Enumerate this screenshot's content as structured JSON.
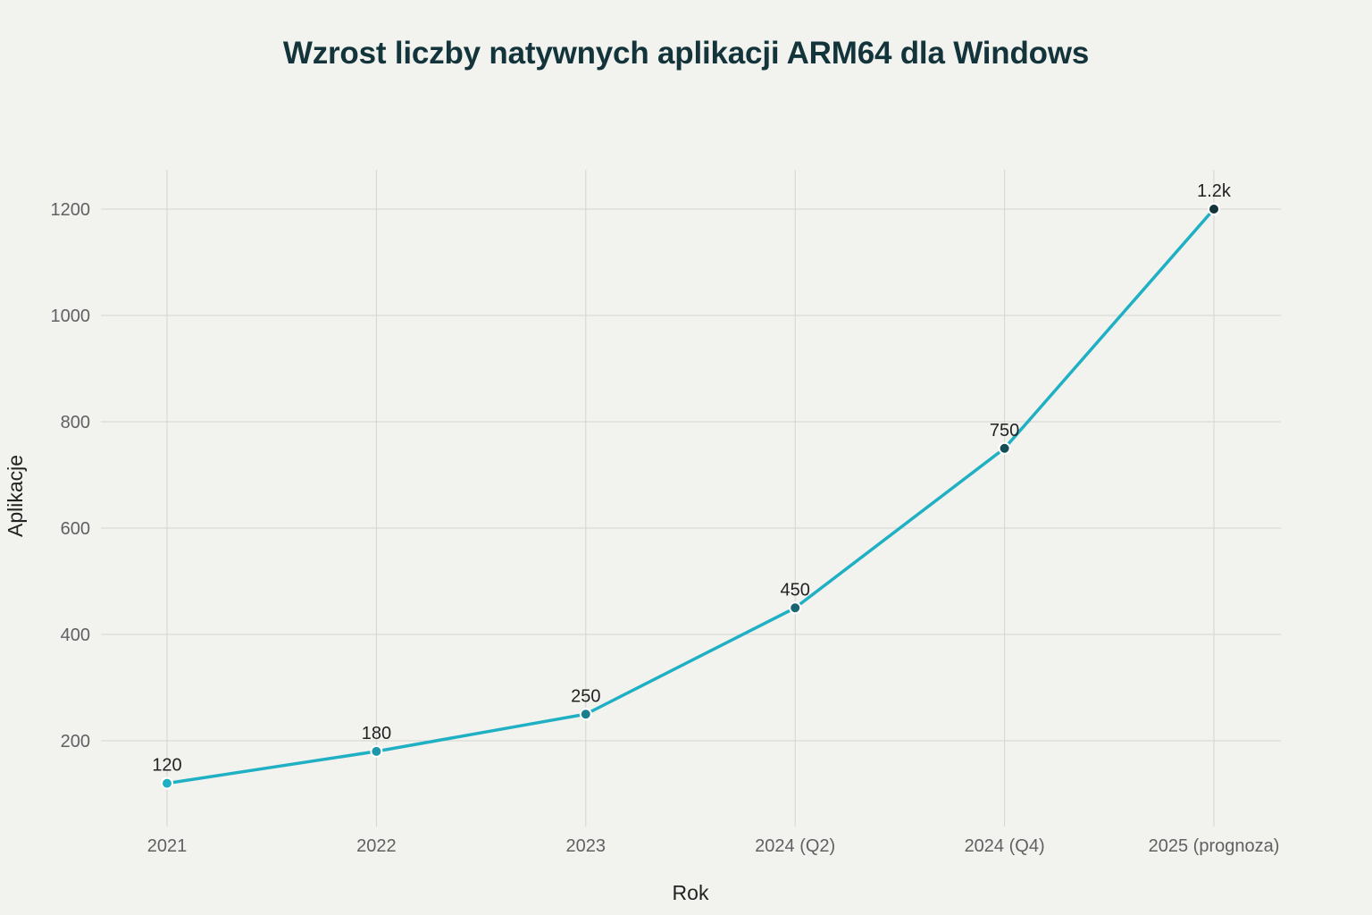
{
  "chart_data": {
    "type": "line",
    "title": "Wzrost liczby natywnych aplikacji ARM64 dla Windows",
    "xlabel": "Rok",
    "ylabel": "Aplikacje",
    "categories": [
      "2021",
      "2022",
      "2023",
      "2024 (Q2)",
      "2024 (Q4)",
      "2025 (prognoza)"
    ],
    "series": [
      {
        "values": [
          120,
          180,
          250,
          450,
          750,
          1200
        ],
        "data_labels": [
          "120",
          "180",
          "250",
          "450",
          "750",
          "1.2k"
        ]
      }
    ],
    "yticks": [
      200,
      400,
      600,
      800,
      1000,
      1200
    ],
    "ylim": [
      50,
      1280
    ],
    "grid": true,
    "colors": {
      "line": "#1fb0c4",
      "marker_start": "#1fb0c4",
      "marker_end": "#13343b",
      "marker_edge": "#ffffff",
      "grid": "#d4d4d0"
    }
  }
}
